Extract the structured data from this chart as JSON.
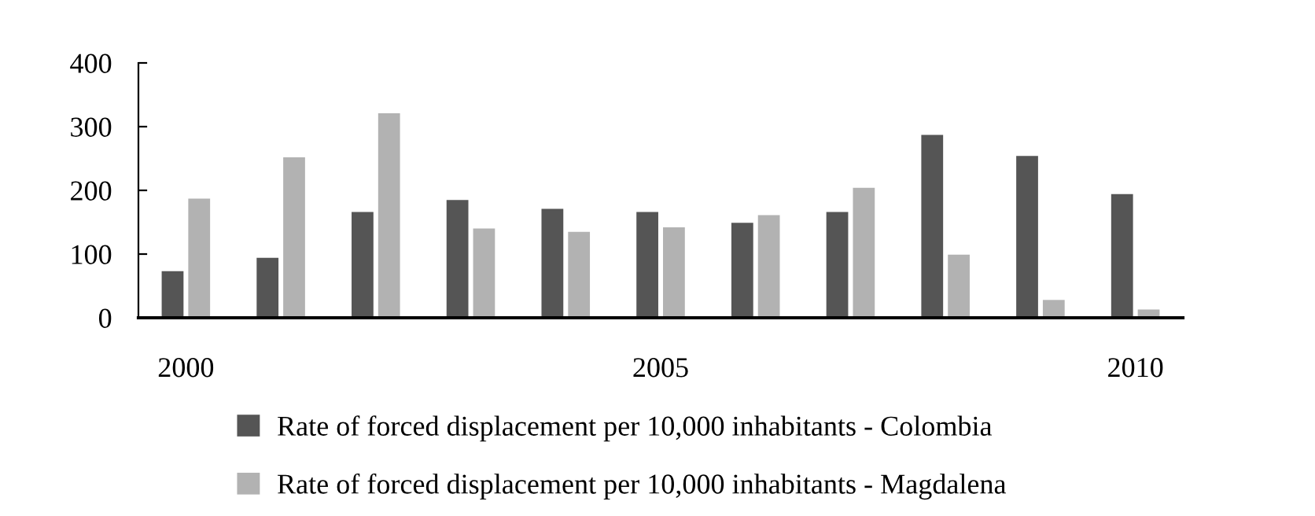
{
  "chart_data": {
    "type": "bar",
    "categories": [
      "2000",
      null,
      null,
      null,
      null,
      "2005",
      null,
      null,
      null,
      null,
      "2010"
    ],
    "series": [
      {
        "name": "Rate of forced displacement per 10,000 inhabitants - Colombia",
        "color": "#555555",
        "values": [
          73,
          94,
          166,
          185,
          171,
          166,
          149,
          166,
          287,
          254,
          194
        ]
      },
      {
        "name": "Rate of forced displacement per 10,000 inhabitants - Magdalena",
        "color": "#b2b2b2",
        "values": [
          187,
          252,
          321,
          140,
          135,
          142,
          161,
          204,
          99,
          28,
          13
        ]
      }
    ],
    "ylim": [
      0,
      400
    ],
    "yticks": [
      0,
      100,
      200,
      300,
      400
    ],
    "grid": false,
    "legend": "bottom"
  }
}
